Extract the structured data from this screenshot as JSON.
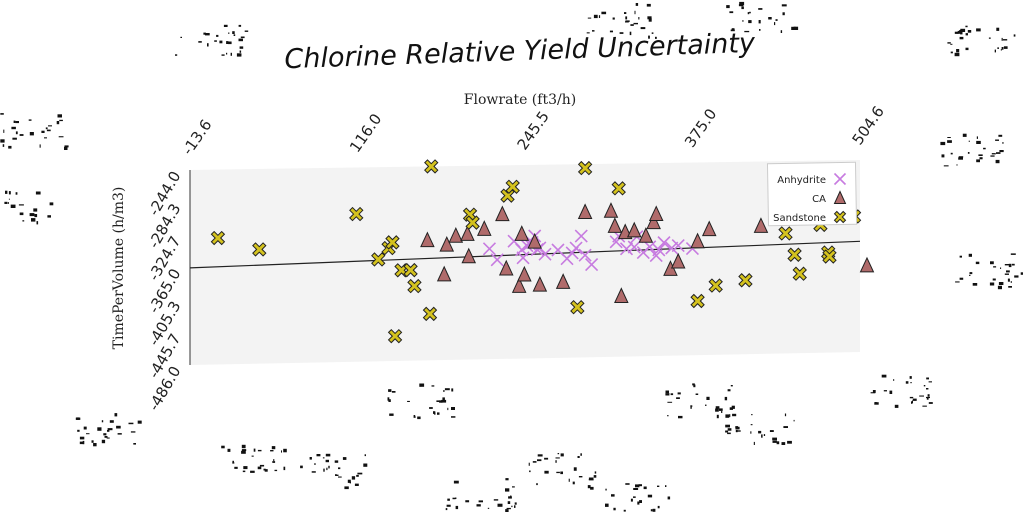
{
  "chart_data": {
    "type": "scatter",
    "title": "Chlorine Relative Yield Uncertainty",
    "xlabel": "Flowrate (ft3/h)",
    "ylabel": "TimePerVolume (h/m3)",
    "xlim": [
      -13.6,
      504.6
    ],
    "ylim": [
      -486.0,
      -244.0
    ],
    "x_ticks": [
      "-13.6",
      "116.0",
      "245.5",
      "375.0",
      "504.6"
    ],
    "y_ticks": [
      "-244.0",
      "-284.3",
      "-324.7",
      "-365.0",
      "-405.3",
      "-445.7",
      "-486.0"
    ],
    "legend_position": "top-right",
    "grid": false,
    "trend_line": {
      "x": [
        -13.6,
        504.6
      ],
      "y": [
        -365.5,
        -346.5
      ]
    },
    "series": [
      {
        "name": "Anhydrite",
        "marker": "x",
        "color": "#c77be0",
        "points": [
          [
            218,
            -348
          ],
          [
            224,
            -362
          ],
          [
            237,
            -339
          ],
          [
            243,
            -350
          ],
          [
            244,
            -360
          ],
          [
            247,
            -345
          ],
          [
            249,
            -343
          ],
          [
            251,
            -341
          ],
          [
            253,
            -333
          ],
          [
            255,
            -350
          ],
          [
            257,
            -348
          ],
          [
            261,
            -356
          ],
          [
            271,
            -351
          ],
          [
            278,
            -362
          ],
          [
            282,
            -355
          ],
          [
            285,
            -349
          ],
          [
            289,
            -334
          ],
          [
            292,
            -358
          ],
          [
            297,
            -370
          ],
          [
            316,
            -342
          ],
          [
            318,
            -335
          ],
          [
            324,
            -351
          ],
          [
            330,
            -349
          ],
          [
            332,
            -336
          ],
          [
            337,
            -356
          ],
          [
            342,
            -349
          ],
          [
            347,
            -360
          ],
          [
            349,
            -353
          ],
          [
            353,
            -344
          ],
          [
            359,
            -351
          ],
          [
            364,
            -348
          ],
          [
            375,
            -352
          ]
        ]
      },
      {
        "name": "CA",
        "marker": "triangle",
        "color": "#b06b6b",
        "points": [
          [
            170,
            -336
          ],
          [
            183,
            -379
          ],
          [
            185,
            -342
          ],
          [
            192,
            -331
          ],
          [
            201,
            -329
          ],
          [
            202,
            -357
          ],
          [
            214,
            -323
          ],
          [
            228,
            -305
          ],
          [
            231,
            -373
          ],
          [
            241,
            -395
          ],
          [
            243,
            -330
          ],
          [
            245,
            -381
          ],
          [
            253,
            -340
          ],
          [
            257,
            -394
          ],
          [
            275,
            -391
          ],
          [
            292,
            -304
          ],
          [
            312,
            -303
          ],
          [
            315,
            -322
          ],
          [
            320,
            -410
          ],
          [
            323,
            -330
          ],
          [
            330,
            -328
          ],
          [
            339,
            -335
          ],
          [
            345,
            -318
          ],
          [
            347,
            -308
          ],
          [
            358,
            -377
          ],
          [
            364,
            -368
          ],
          [
            379,
            -343
          ],
          [
            388,
            -328
          ],
          [
            428,
            -325
          ],
          [
            510,
            -377
          ]
        ]
      },
      {
        "name": "Sandstone",
        "marker": "x-filled",
        "color": "#d4c21e",
        "points": [
          [
            8,
            -329
          ],
          [
            40,
            -344
          ],
          [
            115,
            -302
          ],
          [
            132,
            -359
          ],
          [
            140,
            -345
          ],
          [
            143,
            -338
          ],
          [
            145,
            -455
          ],
          [
            150,
            -373
          ],
          [
            157,
            -373
          ],
          [
            160,
            -393
          ],
          [
            172,
            -428
          ],
          [
            173,
            -244
          ],
          [
            203,
            -305
          ],
          [
            205,
            -315
          ],
          [
            232,
            -282
          ],
          [
            236,
            -271
          ],
          [
            286,
            -423
          ],
          [
            292,
            -249
          ],
          [
            318,
            -275
          ],
          [
            379,
            -418
          ],
          [
            393,
            -399
          ],
          [
            416,
            -393
          ],
          [
            447,
            -335
          ],
          [
            454,
            -362
          ],
          [
            458,
            -386
          ],
          [
            474,
            -325
          ],
          [
            480,
            -360
          ],
          [
            481,
            -365
          ],
          [
            500,
            -315
          ]
        ]
      }
    ]
  }
}
